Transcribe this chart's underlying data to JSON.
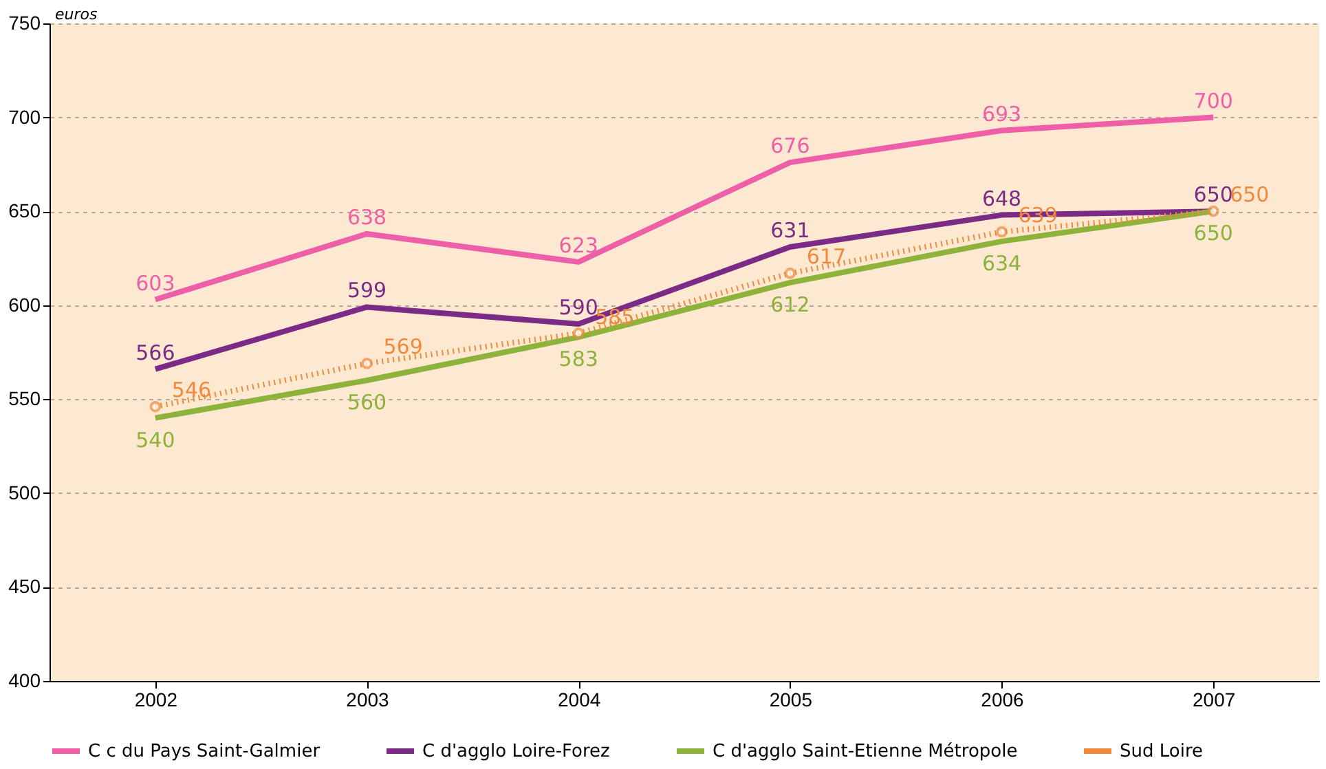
{
  "chart_data": {
    "type": "line",
    "ylabel": "euros",
    "categories": [
      "2002",
      "2003",
      "2004",
      "2005",
      "2006",
      "2007"
    ],
    "ylim": [
      400,
      750
    ],
    "yticks": [
      400,
      450,
      500,
      550,
      600,
      650,
      700,
      750
    ],
    "grid": "y",
    "legend": "bottom",
    "data_labels": true,
    "series": [
      {
        "name": "C c du Pays Saint-Galmier",
        "color": "#ee5fa7",
        "line_style": "solid",
        "marker": "none",
        "values": [
          603,
          638,
          623,
          676,
          693,
          700
        ]
      },
      {
        "name": "C d'agglo Loire-Forez",
        "color": "#7b2a86",
        "line_style": "solid",
        "marker": "none",
        "values": [
          566,
          599,
          590,
          631,
          648,
          650
        ]
      },
      {
        "name": "C d'agglo Saint-Etienne Métropole",
        "color": "#8db33a",
        "line_style": "solid",
        "marker": "none",
        "values": [
          540,
          560,
          583,
          612,
          634,
          650
        ]
      },
      {
        "name": "Sud Loire",
        "color": "#f08a3a",
        "line_style": "dotted",
        "marker": "circle",
        "values": [
          546,
          569,
          585,
          617,
          639,
          650
        ]
      }
    ]
  }
}
